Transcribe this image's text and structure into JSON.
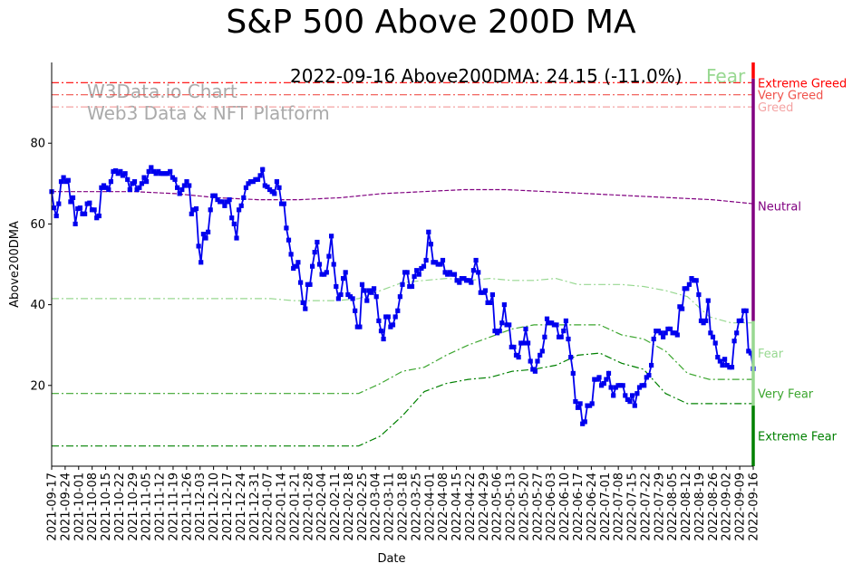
{
  "chart_data": {
    "type": "line",
    "title": "S&P 500 Above 200D MA",
    "xlabel": "Date",
    "ylabel": "Above200DMA",
    "ylim": [
      0,
      100
    ],
    "yticks": [
      20,
      40,
      60,
      80
    ],
    "annotation": {
      "text": "2022-09-16 Above200DMA: 24.15 (-11.0%)",
      "sentiment": "Fear",
      "sentiment_color": "#98d891"
    },
    "watermark": [
      "W3Data.io Chart",
      "Web3 Data & NFT Platform"
    ],
    "x_ticks": [
      "2021-09-17",
      "2021-09-24",
      "2021-10-01",
      "2021-10-08",
      "2021-10-15",
      "2021-10-22",
      "2021-10-29",
      "2021-11-05",
      "2021-11-12",
      "2021-11-19",
      "2021-11-26",
      "2021-12-03",
      "2021-12-10",
      "2021-12-17",
      "2021-12-24",
      "2021-12-31",
      "2022-01-07",
      "2022-01-14",
      "2022-01-21",
      "2022-01-28",
      "2022-02-04",
      "2022-02-11",
      "2022-02-18",
      "2022-02-25",
      "2022-03-04",
      "2022-03-11",
      "2022-03-18",
      "2022-03-25",
      "2022-04-01",
      "2022-04-08",
      "2022-04-15",
      "2022-04-22",
      "2022-04-29",
      "2022-05-06",
      "2022-05-13",
      "2022-05-20",
      "2022-05-27",
      "2022-06-03",
      "2022-06-10",
      "2022-06-17",
      "2022-06-24",
      "2022-07-01",
      "2022-07-08",
      "2022-07-15",
      "2022-07-22",
      "2022-07-29",
      "2022-08-05",
      "2022-08-12",
      "2022-08-19",
      "2022-08-26",
      "2022-09-02",
      "2022-09-09",
      "2022-09-16"
    ],
    "series": [
      {
        "name": "Above200DMA",
        "color": "#0000ee",
        "values": [
          68,
          64,
          62,
          65,
          70.5,
          71.5,
          70.5,
          70.8,
          65.5,
          66.5,
          60,
          63.8,
          64,
          62.5,
          62.5,
          65,
          65.2,
          63.5,
          63.5,
          61.5,
          62,
          69,
          69.5,
          69,
          68.5,
          70.5,
          73,
          73.2,
          72.5,
          73,
          72,
          72.5,
          71,
          68.5,
          70,
          70.5,
          68.5,
          69,
          70,
          71.5,
          70.5,
          73,
          74,
          73,
          72.5,
          73,
          72.5,
          72.5,
          72.5,
          72.5,
          73,
          71.5,
          71,
          69,
          67.5,
          68.5,
          69.5,
          70.5,
          69.5,
          62.5,
          63.5,
          63.8,
          54.5,
          50.5,
          57.5,
          56.5,
          58,
          63.5,
          67,
          67,
          66,
          65.5,
          65.5,
          64.5,
          65.5,
          66,
          61.5,
          60,
          56.5,
          63.5,
          64.5,
          66.5,
          69,
          70,
          70.5,
          70.5,
          71,
          71,
          72,
          73.5,
          69.5,
          69.2,
          68.5,
          68,
          67.5,
          70.5,
          69,
          65,
          65,
          59,
          56,
          52.5,
          49,
          49.5,
          50.5,
          45.5,
          40.5,
          39,
          45,
          45,
          49.5,
          53,
          55.5,
          50,
          47.5,
          47.5,
          48,
          52,
          57,
          50,
          44.5,
          41.5,
          42.5,
          46.5,
          48,
          42.5,
          42,
          41.5,
          38.5,
          34.5,
          34.5,
          45,
          43.5,
          41,
          43.5,
          43,
          44,
          42,
          36,
          33.5,
          31.5,
          37,
          37,
          34.5,
          35,
          37,
          38.5,
          42,
          45,
          48,
          48,
          44.5,
          44.5,
          47,
          48.5,
          47.5,
          49,
          49.5,
          51,
          58,
          55,
          50.5,
          50.5,
          50,
          50,
          51,
          48,
          47.5,
          48,
          47.5,
          47.5,
          46,
          45.5,
          46.5,
          46.5,
          46,
          46,
          45.5,
          48.5,
          51,
          48,
          43,
          43,
          43.5,
          40.5,
          40.5,
          42.5,
          33.5,
          33,
          33.5,
          35.5,
          40,
          35,
          35,
          29.5,
          29.5,
          27.5,
          27,
          30.5,
          30.5,
          34,
          30.5,
          26,
          24,
          23.5,
          26,
          27.5,
          28.5,
          32,
          36.5,
          35.5,
          35.5,
          35,
          35,
          32,
          32,
          33.5,
          36,
          31.5,
          27,
          23,
          16,
          14.5,
          15.5,
          10.5,
          11,
          15,
          15,
          15.5,
          21.5,
          21.5,
          22,
          20,
          20.5,
          21.5,
          23,
          19.5,
          17.5,
          19.5,
          20,
          20,
          20,
          17.5,
          16.5,
          16,
          17.5,
          15,
          18,
          19.5,
          20,
          20,
          22,
          22.5,
          25,
          31.5,
          33.5,
          33.5,
          33,
          32,
          33,
          34,
          34,
          33,
          33,
          32.5,
          39.5,
          39,
          44,
          44,
          45,
          46.5,
          46,
          46,
          42.5,
          36,
          35.5,
          36,
          41,
          33,
          32,
          30.5,
          27,
          26,
          25,
          26.5,
          25,
          24.5,
          24.5,
          31,
          33,
          36,
          36,
          38.5,
          38.5,
          28.5,
          28,
          24.15
        ]
      }
    ],
    "bands": [
      {
        "name": "Extreme Greed",
        "color": "#ff0000",
        "values": [
          95,
          95
        ]
      },
      {
        "name": "Very Greed",
        "color": "#f0524b",
        "values": [
          92,
          92
        ]
      },
      {
        "name": "Greed",
        "color": "#f4a3a3",
        "values": [
          89,
          89
        ]
      },
      {
        "name": "Neutral",
        "color": "#800080",
        "values": [
          68,
          68,
          68,
          67.5,
          66.5,
          66,
          66,
          66.5,
          67.5,
          68,
          68.5,
          68.5,
          68,
          67.5,
          67,
          66.5,
          66,
          65
        ]
      },
      {
        "name": "Fear",
        "color": "#98d891",
        "values": [
          41.5,
          41.5,
          41.5,
          41.5,
          41.5,
          41.5,
          41.5,
          41.5,
          41.5,
          41.5,
          41.5,
          41,
          41,
          41,
          41.5,
          43.5,
          45.5,
          46,
          46.5,
          46,
          46.5,
          46,
          46,
          46.5,
          45,
          45,
          45,
          44.5,
          43.5,
          42,
          37,
          35.5,
          35.5
        ]
      },
      {
        "name": "Very Fear",
        "color": "#3ca62f",
        "values": [
          18,
          18,
          18,
          18,
          18,
          18,
          18,
          18,
          18,
          18,
          18,
          18,
          18,
          18,
          18,
          20.5,
          23.5,
          24.5,
          27.5,
          30,
          32,
          34,
          35,
          35,
          35,
          35,
          32.5,
          31.5,
          28.5,
          23,
          21.5,
          21.5,
          21.5
        ]
      },
      {
        "name": "Extreme Fear",
        "color": "#008000",
        "values": [
          5,
          5,
          5,
          5,
          5,
          5,
          5,
          5,
          5,
          5,
          5,
          5,
          5,
          5,
          5,
          7.5,
          12.5,
          18.5,
          20.5,
          21.5,
          22,
          23.5,
          24,
          25,
          27.5,
          28,
          25.5,
          24,
          18,
          15.5,
          15.5,
          15.5,
          15.5
        ]
      }
    ],
    "right_labels": [
      {
        "text": "Extreme Greed",
        "color": "#ff0000",
        "y": 95
      },
      {
        "text": "Very Greed",
        "color": "#f0524b",
        "y": 92
      },
      {
        "text": "Greed",
        "color": "#f4a3a3",
        "y": 89
      },
      {
        "text": "Neutral",
        "color": "#800080",
        "y": 64.5
      },
      {
        "text": "Fear",
        "color": "#98d891",
        "y": 28
      },
      {
        "text": "Very Fear",
        "color": "#3ca62f",
        "y": 18
      },
      {
        "text": "Extreme Fear",
        "color": "#008000",
        "y": 7.5
      }
    ],
    "side_bar": [
      {
        "from": 96,
        "to": 100,
        "color": "#ff0000"
      },
      {
        "from": 36,
        "to": 96,
        "color": "#800080"
      },
      {
        "from": 15,
        "to": 36,
        "color": "#98d891"
      },
      {
        "from": 0,
        "to": 15,
        "color": "#008000"
      }
    ],
    "grid": false
  }
}
